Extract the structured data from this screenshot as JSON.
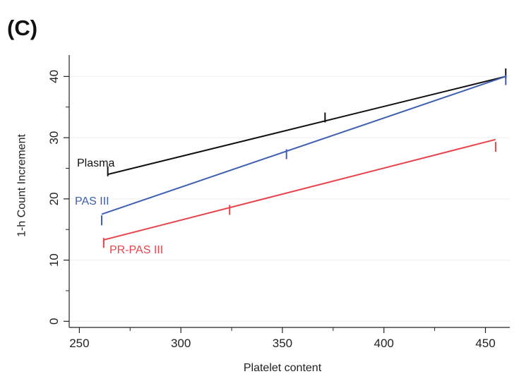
{
  "panel_label": "(C)",
  "chart_data": {
    "type": "line",
    "title": "",
    "xlabel": "Platelet content",
    "ylabel": "1-h Count Increment",
    "xlim": [
      245,
      462
    ],
    "ylim": [
      -1,
      43.5
    ],
    "xticks": [
      250,
      300,
      350,
      400,
      450
    ],
    "yticks": [
      0,
      10,
      20,
      30,
      40
    ],
    "grid": "horizontal",
    "legend": "inline labels",
    "series": [
      {
        "name": "Plasma",
        "color": "#111111",
        "start": [
          264,
          24
        ],
        "end": [
          460,
          40
        ],
        "ticks": [
          [
            264,
            24.5
          ],
          [
            371,
            33.3
          ],
          [
            460,
            40.5
          ]
        ]
      },
      {
        "name": "PAS III",
        "color": "#3f5fb0",
        "start": [
          261,
          17.5
        ],
        "end": [
          460,
          40
        ],
        "ticks": [
          [
            261,
            16.5
          ],
          [
            352,
            27.3
          ],
          [
            460,
            39.4
          ]
        ]
      },
      {
        "name": "PR-PAS III",
        "color": "#e8434a",
        "start": [
          262,
          13.3
        ],
        "end": [
          455,
          29.7
        ],
        "ticks": [
          [
            262,
            12.8
          ],
          [
            324,
            18.2
          ],
          [
            455,
            28.5
          ]
        ]
      }
    ]
  }
}
